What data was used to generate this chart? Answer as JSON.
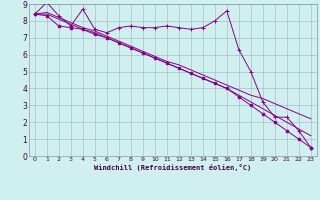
{
  "bg_color": "#cff0ee",
  "line_color": "#880088",
  "grid_color": "#aabbcc",
  "xlabel": "Windchill (Refroidissement éolien,°C)",
  "xlim": [
    -0.5,
    23.5
  ],
  "ylim": [
    0,
    9
  ],
  "xticks": [
    0,
    1,
    2,
    3,
    4,
    5,
    6,
    7,
    8,
    9,
    10,
    11,
    12,
    13,
    14,
    15,
    16,
    17,
    18,
    19,
    20,
    21,
    22,
    23
  ],
  "yticks": [
    0,
    1,
    2,
    3,
    4,
    5,
    6,
    7,
    8,
    9
  ],
  "series1_x": [
    0,
    1,
    2,
    3,
    4,
    5,
    6,
    7,
    8,
    9,
    10,
    11,
    12,
    13,
    14,
    15,
    16,
    17,
    18,
    19,
    20,
    21,
    22,
    23
  ],
  "series1_y": [
    8.4,
    9.1,
    8.3,
    7.7,
    8.7,
    7.5,
    7.3,
    7.6,
    7.7,
    7.6,
    7.6,
    7.7,
    7.6,
    7.5,
    7.6,
    8.0,
    8.6,
    6.3,
    5.0,
    3.2,
    2.3,
    2.3,
    1.5,
    0.5
  ],
  "series2_x": [
    0,
    1,
    2,
    3,
    4,
    5,
    6,
    7,
    8,
    9,
    10,
    11,
    12,
    13,
    14,
    15,
    16,
    17,
    18,
    19,
    20,
    21,
    22,
    23
  ],
  "series2_y": [
    8.4,
    8.3,
    7.7,
    7.6,
    7.5,
    7.2,
    7.0,
    6.7,
    6.4,
    6.1,
    5.8,
    5.5,
    5.2,
    4.9,
    4.6,
    4.3,
    4.0,
    3.5,
    3.0,
    2.5,
    2.0,
    1.5,
    1.0,
    0.5
  ],
  "series3_x": [
    0,
    1,
    2,
    3,
    4,
    5,
    6,
    7,
    8,
    9,
    10,
    11,
    12,
    13,
    14,
    15,
    16,
    17,
    18,
    19,
    20,
    21,
    22,
    23
  ],
  "series3_y": [
    8.4,
    8.4,
    8.1,
    7.8,
    7.5,
    7.3,
    7.0,
    6.7,
    6.4,
    6.1,
    5.8,
    5.5,
    5.2,
    4.9,
    4.6,
    4.3,
    4.0,
    3.6,
    3.2,
    2.8,
    2.4,
    2.0,
    1.6,
    1.2
  ],
  "series4_x": [
    0,
    1,
    2,
    3,
    4,
    5,
    6,
    7,
    8,
    9,
    10,
    11,
    12,
    13,
    14,
    15,
    16,
    17,
    18,
    19,
    20,
    21,
    22,
    23
  ],
  "series4_y": [
    8.4,
    8.5,
    8.2,
    7.9,
    7.6,
    7.4,
    7.1,
    6.8,
    6.5,
    6.2,
    5.9,
    5.6,
    5.4,
    5.1,
    4.8,
    4.5,
    4.2,
    3.9,
    3.6,
    3.4,
    3.1,
    2.8,
    2.5,
    2.2
  ]
}
